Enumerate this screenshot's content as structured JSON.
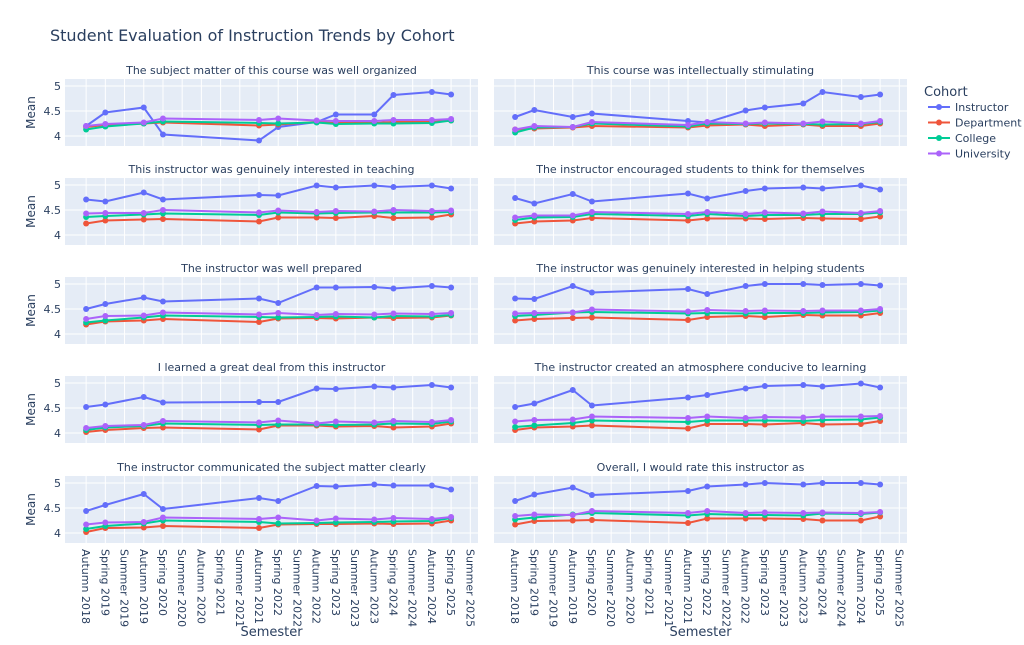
{
  "chart_data": {
    "type": "line",
    "title": "Student Evaluation of Instruction Trends by Cohort",
    "x_label": "Semester",
    "y_label": "Mean",
    "legend_title": "Cohort",
    "series": [
      {
        "name": "Instructor",
        "color": "#636efa"
      },
      {
        "name": "Department",
        "color": "#ef553b"
      },
      {
        "name": "College",
        "color": "#00cc96"
      },
      {
        "name": "University",
        "color": "#ab63fa"
      }
    ],
    "x": [
      0,
      1,
      3,
      4,
      9,
      10,
      12,
      13,
      15,
      16,
      18,
      19
    ],
    "xlim": [
      -1.1,
      20.4
    ],
    "xticks": [
      {
        "value": 0,
        "label": "Autumn 2018"
      },
      {
        "value": 1,
        "label": "Spring 2019"
      },
      {
        "value": 2,
        "label": "Summer 2019"
      },
      {
        "value": 3,
        "label": "Autumn 2019"
      },
      {
        "value": 4,
        "label": "Spring 2020"
      },
      {
        "value": 5,
        "label": "Summer 2020"
      },
      {
        "value": 6,
        "label": "Autumn 2020"
      },
      {
        "value": 7,
        "label": "Spring 2021"
      },
      {
        "value": 8,
        "label": "Summer 2021"
      },
      {
        "value": 9,
        "label": "Autumn 2021"
      },
      {
        "value": 10,
        "label": "Spring 2022"
      },
      {
        "value": 11,
        "label": "Summer 2022"
      },
      {
        "value": 12,
        "label": "Autumn 2022"
      },
      {
        "value": 13,
        "label": "Spring 2023"
      },
      {
        "value": 14,
        "label": "Summer 2023"
      },
      {
        "value": 15,
        "label": "Autumn 2023"
      },
      {
        "value": 16,
        "label": "Spring 2024"
      },
      {
        "value": 17,
        "label": "Summer 2024"
      },
      {
        "value": 18,
        "label": "Autumn 2024"
      },
      {
        "value": 19,
        "label": "Spring 2025"
      },
      {
        "value": 20,
        "label": "Summer 2025"
      }
    ],
    "ylim": [
      3.8,
      5.14
    ],
    "yticks": [
      4,
      4.5,
      5
    ],
    "grid": true,
    "panels": [
      {
        "title": "The subject matter of this course was well organized",
        "values": [
          [
            4.2,
            4.47,
            4.57,
            4.03,
            3.91,
            4.18,
            4.28,
            4.43,
            4.43,
            4.82,
            4.88,
            4.83
          ],
          [
            4.18,
            4.22,
            4.25,
            4.27,
            4.21,
            4.23,
            4.28,
            4.26,
            4.26,
            4.28,
            4.28,
            4.31
          ],
          [
            4.13,
            4.19,
            4.25,
            4.29,
            4.26,
            4.25,
            4.27,
            4.24,
            4.25,
            4.25,
            4.26,
            4.31
          ],
          [
            4.2,
            4.24,
            4.27,
            4.35,
            4.32,
            4.35,
            4.31,
            4.3,
            4.3,
            4.32,
            4.32,
            4.34
          ]
        ]
      },
      {
        "title": "This course was intellectually stimulating",
        "values": [
          [
            4.38,
            4.52,
            4.38,
            4.45,
            4.3,
            4.27,
            4.51,
            4.57,
            4.65,
            4.88,
            4.78,
            4.83
          ],
          [
            4.13,
            4.15,
            4.17,
            4.2,
            4.17,
            4.21,
            4.23,
            4.2,
            4.23,
            4.2,
            4.2,
            4.25
          ],
          [
            4.07,
            4.17,
            4.18,
            4.25,
            4.19,
            4.25,
            4.24,
            4.25,
            4.24,
            4.23,
            4.24,
            4.28
          ],
          [
            4.13,
            4.2,
            4.18,
            4.28,
            4.22,
            4.28,
            4.25,
            4.27,
            4.25,
            4.29,
            4.25,
            4.3
          ]
        ]
      },
      {
        "title": "This instructor was genuinely interested in teaching",
        "values": [
          [
            4.71,
            4.67,
            4.85,
            4.71,
            4.8,
            4.79,
            4.99,
            4.95,
            4.99,
            4.96,
            4.99,
            4.93
          ],
          [
            4.23,
            4.29,
            4.31,
            4.32,
            4.27,
            4.35,
            4.35,
            4.34,
            4.38,
            4.34,
            4.35,
            4.41
          ],
          [
            4.36,
            4.38,
            4.41,
            4.43,
            4.4,
            4.45,
            4.43,
            4.44,
            4.45,
            4.45,
            4.45,
            4.46
          ],
          [
            4.43,
            4.44,
            4.44,
            4.5,
            4.45,
            4.49,
            4.46,
            4.48,
            4.47,
            4.5,
            4.48,
            4.49
          ]
        ]
      },
      {
        "title": "The instructor encouraged students to think for themselves",
        "values": [
          [
            4.74,
            4.63,
            4.82,
            4.67,
            4.83,
            4.73,
            4.88,
            4.93,
            4.95,
            4.93,
            4.99,
            4.91
          ],
          [
            4.23,
            4.27,
            4.29,
            4.34,
            4.29,
            4.33,
            4.33,
            4.32,
            4.34,
            4.33,
            4.32,
            4.37
          ],
          [
            4.3,
            4.35,
            4.36,
            4.42,
            4.38,
            4.42,
            4.38,
            4.4,
            4.4,
            4.42,
            4.42,
            4.45
          ],
          [
            4.35,
            4.39,
            4.39,
            4.46,
            4.42,
            4.46,
            4.42,
            4.45,
            4.43,
            4.47,
            4.44,
            4.48
          ]
        ]
      },
      {
        "title": "The instructor was well prepared",
        "values": [
          [
            4.5,
            4.6,
            4.73,
            4.65,
            4.71,
            4.62,
            4.93,
            4.93,
            4.94,
            4.91,
            4.96,
            4.93
          ],
          [
            4.19,
            4.25,
            4.27,
            4.3,
            4.24,
            4.31,
            4.32,
            4.31,
            4.33,
            4.32,
            4.33,
            4.37
          ],
          [
            4.23,
            4.27,
            4.33,
            4.37,
            4.34,
            4.33,
            4.34,
            4.35,
            4.33,
            4.36,
            4.35,
            4.38
          ],
          [
            4.3,
            4.36,
            4.37,
            4.43,
            4.39,
            4.42,
            4.38,
            4.4,
            4.39,
            4.41,
            4.4,
            4.42
          ]
        ]
      },
      {
        "title": "The instructor was genuinely interested in helping students",
        "values": [
          [
            4.71,
            4.7,
            4.96,
            4.83,
            4.9,
            4.8,
            4.96,
            5.0,
            5.0,
            4.98,
            5.0,
            4.97
          ],
          [
            4.27,
            4.3,
            4.32,
            4.33,
            4.28,
            4.34,
            4.36,
            4.34,
            4.38,
            4.37,
            4.37,
            4.42
          ],
          [
            4.36,
            4.38,
            4.43,
            4.44,
            4.41,
            4.42,
            4.41,
            4.42,
            4.42,
            4.43,
            4.44,
            4.47
          ],
          [
            4.41,
            4.42,
            4.43,
            4.49,
            4.45,
            4.48,
            4.46,
            4.47,
            4.46,
            4.47,
            4.47,
            4.5
          ]
        ]
      },
      {
        "title": "I learned a great deal from this instructor",
        "values": [
          [
            4.52,
            4.57,
            4.72,
            4.61,
            4.62,
            4.62,
            4.89,
            4.88,
            4.93,
            4.91,
            4.96,
            4.91
          ],
          [
            4.02,
            4.06,
            4.1,
            4.11,
            4.07,
            4.15,
            4.15,
            4.13,
            4.14,
            4.11,
            4.13,
            4.19
          ],
          [
            4.06,
            4.11,
            4.14,
            4.19,
            4.16,
            4.17,
            4.17,
            4.16,
            4.17,
            4.19,
            4.18,
            4.23
          ],
          [
            4.1,
            4.14,
            4.16,
            4.24,
            4.21,
            4.25,
            4.19,
            4.23,
            4.21,
            4.24,
            4.22,
            4.26
          ]
        ]
      },
      {
        "title": "The instructor created an atmosphere conducive to learning",
        "values": [
          [
            4.52,
            4.59,
            4.86,
            4.55,
            4.71,
            4.76,
            4.89,
            4.94,
            4.96,
            4.93,
            4.99,
            4.91
          ],
          [
            4.06,
            4.11,
            4.13,
            4.15,
            4.09,
            4.18,
            4.18,
            4.17,
            4.2,
            4.17,
            4.18,
            4.24
          ],
          [
            4.12,
            4.15,
            4.2,
            4.25,
            4.22,
            4.25,
            4.25,
            4.25,
            4.24,
            4.26,
            4.27,
            4.31
          ],
          [
            4.23,
            4.26,
            4.27,
            4.33,
            4.3,
            4.33,
            4.3,
            4.32,
            4.31,
            4.33,
            4.33,
            4.34
          ]
        ]
      },
      {
        "title": "The instructor communicated the subject matter clearly",
        "values": [
          [
            4.44,
            4.56,
            4.78,
            4.48,
            4.7,
            4.64,
            4.94,
            4.93,
            4.97,
            4.95,
            4.95,
            4.87
          ],
          [
            4.02,
            4.1,
            4.11,
            4.14,
            4.1,
            4.17,
            4.18,
            4.18,
            4.19,
            4.18,
            4.19,
            4.25
          ],
          [
            4.08,
            4.14,
            4.19,
            4.25,
            4.22,
            4.19,
            4.2,
            4.21,
            4.22,
            4.23,
            4.24,
            4.3
          ],
          [
            4.17,
            4.21,
            4.22,
            4.31,
            4.28,
            4.31,
            4.25,
            4.29,
            4.27,
            4.3,
            4.28,
            4.32
          ]
        ]
      },
      {
        "title": "Overall, I would rate this instructor as",
        "values": [
          [
            4.64,
            4.77,
            4.91,
            4.76,
            4.84,
            4.93,
            4.97,
            5.0,
            4.97,
            5.0,
            5.0,
            4.97
          ],
          [
            4.17,
            4.24,
            4.25,
            4.26,
            4.2,
            4.29,
            4.29,
            4.29,
            4.28,
            4.25,
            4.25,
            4.33
          ],
          [
            4.27,
            4.31,
            4.37,
            4.4,
            4.35,
            4.38,
            4.36,
            4.36,
            4.35,
            4.39,
            4.38,
            4.41
          ],
          [
            4.34,
            4.37,
            4.36,
            4.44,
            4.4,
            4.44,
            4.4,
            4.41,
            4.4,
            4.41,
            4.4,
            4.42
          ]
        ]
      }
    ]
  }
}
